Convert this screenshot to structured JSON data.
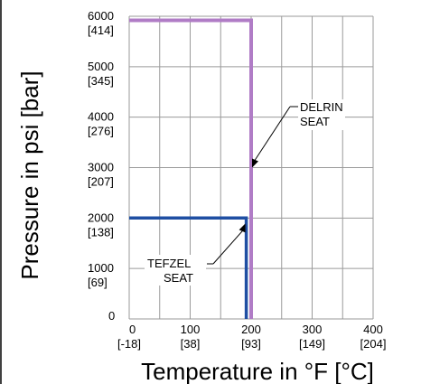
{
  "chart_data": {
    "type": "line",
    "xlabel": "Temperature in °F [°C]",
    "ylabel": "Pressure in psi [bar]",
    "xlim": [
      0,
      400
    ],
    "ylim": [
      0,
      6000
    ],
    "grid": true,
    "x_ticks": [
      {
        "value": 0,
        "label": "0",
        "sublabel": "[-18]"
      },
      {
        "value": 100,
        "label": "100",
        "sublabel": "[38]"
      },
      {
        "value": 200,
        "label": "200",
        "sublabel": "[93]"
      },
      {
        "value": 300,
        "label": "300",
        "sublabel": "[149]"
      },
      {
        "value": 400,
        "label": "400",
        "sublabel": "[204]"
      }
    ],
    "y_ticks": [
      {
        "value": 0,
        "label": "0",
        "sublabel": ""
      },
      {
        "value": 1000,
        "label": "1000",
        "sublabel": "[69]"
      },
      {
        "value": 2000,
        "label": "2000",
        "sublabel": "[138]"
      },
      {
        "value": 3000,
        "label": "3000",
        "sublabel": "[207]"
      },
      {
        "value": 4000,
        "label": "4000",
        "sublabel": "[276]"
      },
      {
        "value": 5000,
        "label": "5000",
        "sublabel": "[345]"
      },
      {
        "value": 6000,
        "label": "6000",
        "sublabel": "[414]"
      }
    ],
    "series": [
      {
        "name": "DELRIN SEAT",
        "color": "#b07cc6",
        "x": [
          0,
          200,
          200
        ],
        "y": [
          5920,
          5920,
          0
        ]
      },
      {
        "name": "TEFZEL SEAT",
        "color": "#1f4fa3",
        "x": [
          0,
          192,
          192
        ],
        "y": [
          2000,
          2000,
          0
        ]
      }
    ],
    "annotations": [
      {
        "lines": [
          "DELRIN",
          "SEAT"
        ],
        "series": 0
      },
      {
        "lines": [
          "TEFZEL",
          "SEAT"
        ],
        "series": 1
      }
    ]
  }
}
